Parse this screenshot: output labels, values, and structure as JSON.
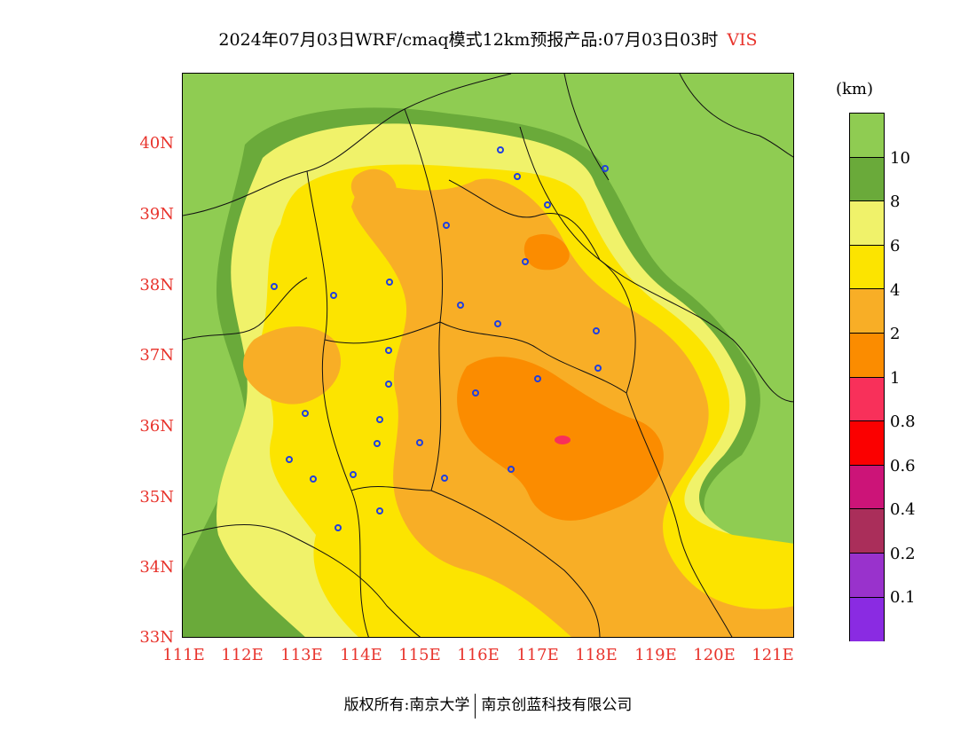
{
  "title": "2024年07月03日WRF/cmaq模式12km预报产品:07月03日03时",
  "variable": "VIS",
  "latitude_labels": [
    "40N",
    "39N",
    "38N",
    "37N",
    "36N",
    "35N",
    "34N",
    "33N"
  ],
  "longitude_labels": [
    "111E",
    "112E",
    "113E",
    "114E",
    "115E",
    "116E",
    "117E",
    "118E",
    "119E",
    "120E",
    "121E"
  ],
  "legend": {
    "unit": "(km)",
    "labels": [
      "10",
      "8",
      "6",
      "4",
      "2",
      "1",
      "0.8",
      "0.6",
      "0.4",
      "0.2",
      "0.1"
    ],
    "colors": [
      "#8fcc52",
      "#6aaa3a",
      "#f0f26a",
      "#fce400",
      "#f8ae26",
      "#fb8c00",
      "#f8305a",
      "#fb0000",
      "#cc1478",
      "#aa2e5a",
      "#9932cc",
      "#8a2be2"
    ]
  },
  "footer": {
    "left": "版权所有:南京大学",
    "right": "南京创蓝科技有限公司"
  }
}
